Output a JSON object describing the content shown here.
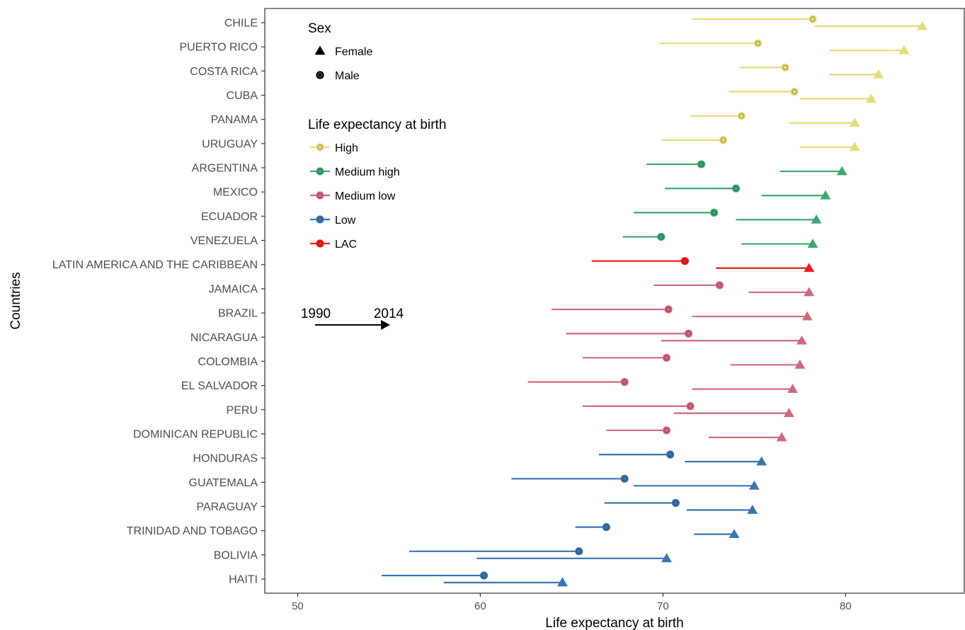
{
  "chart_data": {
    "type": "dumbbell",
    "xlabel": "Life expectancy at birth",
    "ylabel": "Countries",
    "xlim": [
      48.2,
      86.5
    ],
    "xticks": [
      50,
      60,
      70,
      80
    ],
    "grid": false,
    "legend_placement": "top-left-inside",
    "annotation": {
      "start_label": "1990",
      "end_label": "2014"
    },
    "legend": {
      "sex_title": "Sex",
      "sex_items": [
        {
          "label": "Female",
          "shape": "triangle"
        },
        {
          "label": "Male",
          "shape": "circle"
        }
      ],
      "group_title": "Life expectancy at birth",
      "group_items": [
        {
          "key": "high",
          "label": "High"
        },
        {
          "key": "medhigh",
          "label": "Medium high"
        },
        {
          "key": "medlow",
          "label": "Medium low"
        },
        {
          "key": "low",
          "label": "Low"
        },
        {
          "key": "lac",
          "label": "LAC"
        }
      ]
    },
    "colors": {
      "high": "#e4dc7a",
      "medhigh": "#3fa673",
      "medlow": "#d1687d",
      "low": "#3c74ad",
      "lac": "#ee1c1c"
    },
    "countries": [
      {
        "name": "CHILE",
        "group": "high",
        "male": [
          71.6,
          78.2
        ],
        "female": [
          78.3,
          84.2
        ]
      },
      {
        "name": "PUERTO RICO",
        "group": "high",
        "male": [
          69.8,
          75.2
        ],
        "female": [
          79.1,
          83.2
        ]
      },
      {
        "name": "COSTA RICA",
        "group": "high",
        "male": [
          74.2,
          76.7
        ],
        "female": [
          79.1,
          81.8
        ]
      },
      {
        "name": "CUBA",
        "group": "high",
        "male": [
          73.6,
          77.2
        ],
        "female": [
          77.5,
          81.4
        ]
      },
      {
        "name": "PANAMA",
        "group": "high",
        "male": [
          71.5,
          74.3
        ],
        "female": [
          76.9,
          80.5
        ]
      },
      {
        "name": "URUGUAY",
        "group": "high",
        "male": [
          69.9,
          73.3
        ],
        "female": [
          77.5,
          80.5
        ]
      },
      {
        "name": "ARGENTINA",
        "group": "medhigh",
        "male": [
          69.1,
          72.1
        ],
        "female": [
          76.4,
          79.8
        ]
      },
      {
        "name": "MEXICO",
        "group": "medhigh",
        "male": [
          70.1,
          74.0
        ],
        "female": [
          75.4,
          78.9
        ]
      },
      {
        "name": "ECUADOR",
        "group": "medhigh",
        "male": [
          68.4,
          72.8
        ],
        "female": [
          74.0,
          78.4
        ]
      },
      {
        "name": "VENEZUELA",
        "group": "medhigh",
        "male": [
          67.8,
          69.9
        ],
        "female": [
          74.3,
          78.2
        ]
      },
      {
        "name": "LATIN AMERICA AND THE CARIBBEAN",
        "group": "lac",
        "male": [
          66.1,
          71.2
        ],
        "female": [
          72.9,
          78.0
        ]
      },
      {
        "name": "JAMAICA",
        "group": "medlow",
        "male": [
          69.5,
          73.1
        ],
        "female": [
          74.7,
          78.0
        ]
      },
      {
        "name": "BRAZIL",
        "group": "medlow",
        "male": [
          63.9,
          70.3
        ],
        "female": [
          71.6,
          77.9
        ]
      },
      {
        "name": "NICARAGUA",
        "group": "medlow",
        "male": [
          64.7,
          71.4
        ],
        "female": [
          69.9,
          77.6
        ]
      },
      {
        "name": "COLOMBIA",
        "group": "medlow",
        "male": [
          65.6,
          70.2
        ],
        "female": [
          73.7,
          77.5
        ]
      },
      {
        "name": "EL SALVADOR",
        "group": "medlow",
        "male": [
          62.6,
          67.9
        ],
        "female": [
          71.6,
          77.1
        ]
      },
      {
        "name": "PERU",
        "group": "medlow",
        "male": [
          65.6,
          71.5
        ],
        "female": [
          70.6,
          76.9
        ]
      },
      {
        "name": "DOMINICAN REPUBLIC",
        "group": "medlow",
        "male": [
          66.9,
          70.2
        ],
        "female": [
          72.5,
          76.5
        ]
      },
      {
        "name": "HONDURAS",
        "group": "low",
        "male": [
          66.5,
          70.4
        ],
        "female": [
          71.2,
          75.4
        ]
      },
      {
        "name": "GUATEMALA",
        "group": "low",
        "male": [
          61.7,
          67.9
        ],
        "female": [
          68.4,
          75.0
        ]
      },
      {
        "name": "PARAGUAY",
        "group": "low",
        "male": [
          66.8,
          70.7
        ],
        "female": [
          71.3,
          74.9
        ]
      },
      {
        "name": "TRINIDAD AND TOBAGO",
        "group": "low",
        "male": [
          65.2,
          66.9
        ],
        "female": [
          71.7,
          73.9
        ]
      },
      {
        "name": "BOLIVIA",
        "group": "low",
        "male": [
          56.1,
          65.4
        ],
        "female": [
          59.8,
          70.2
        ]
      },
      {
        "name": "HAITI",
        "group": "low",
        "male": [
          54.6,
          60.2
        ],
        "female": [
          58.0,
          64.5
        ]
      }
    ]
  }
}
